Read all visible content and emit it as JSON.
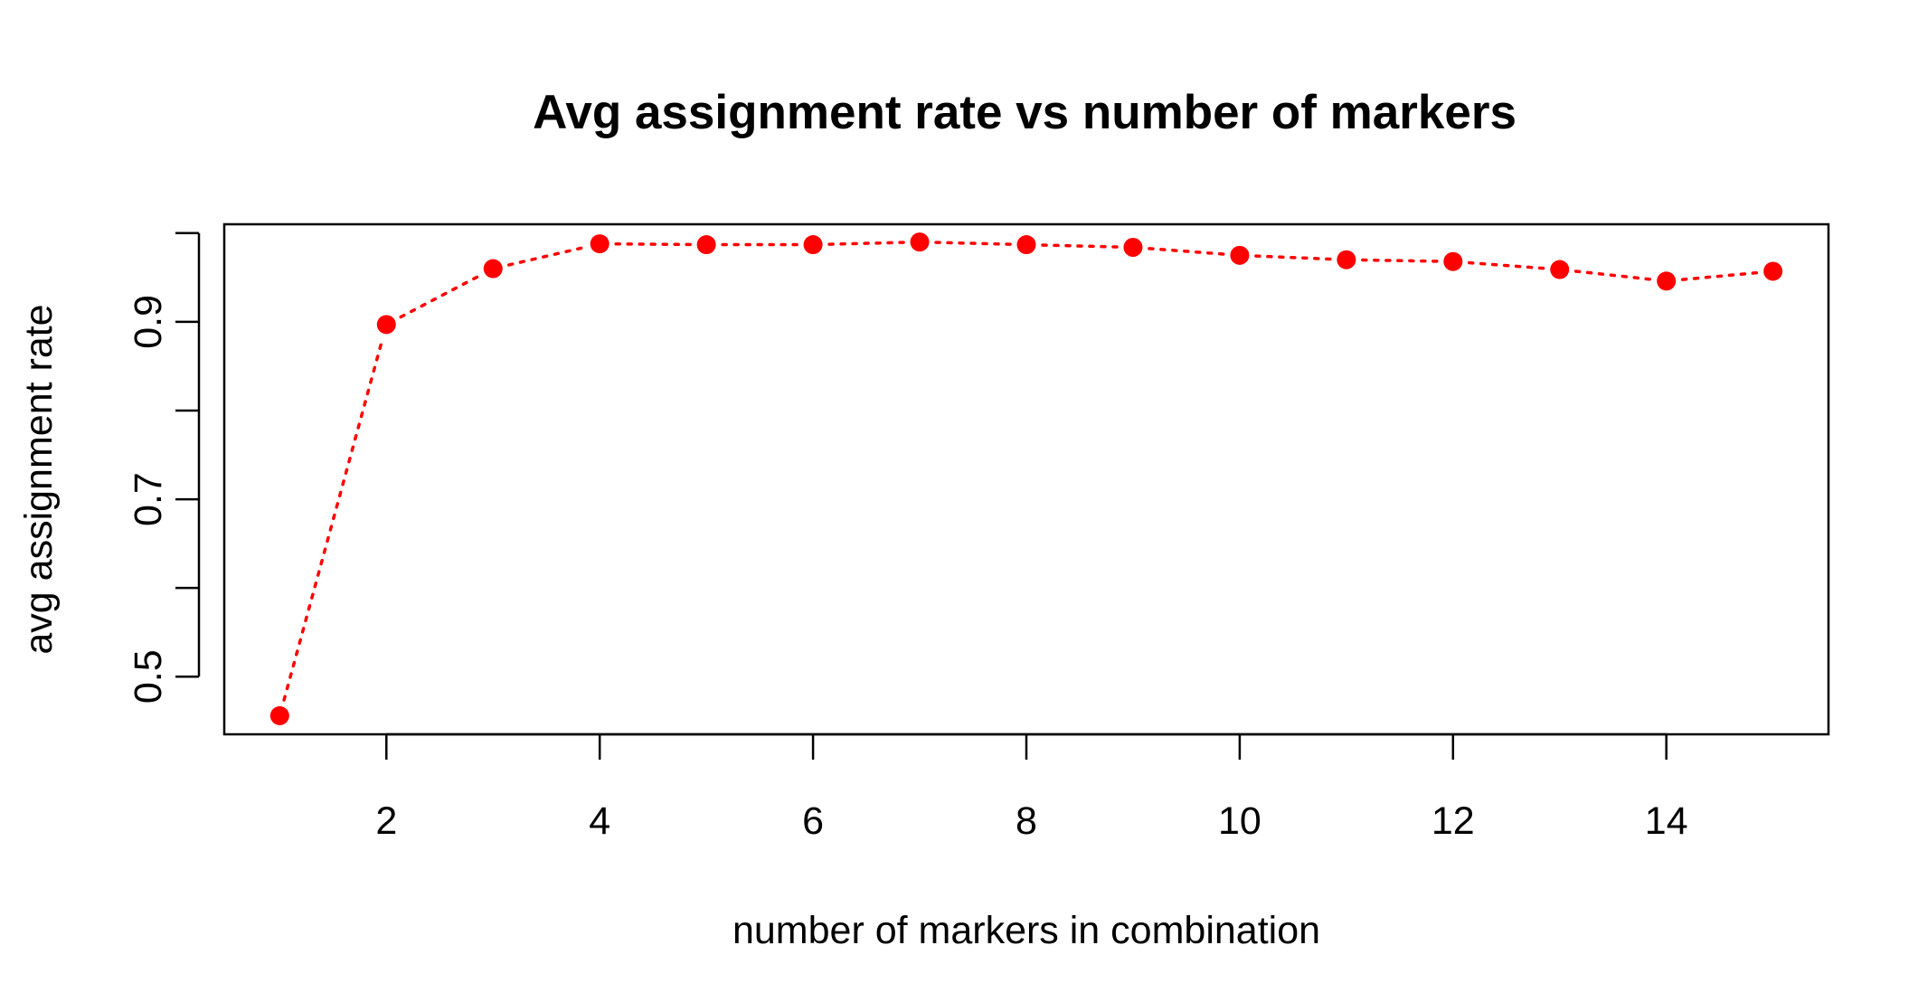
{
  "chart_data": {
    "type": "line",
    "title": "Avg assignment rate vs number of markers",
    "xlabel": "number of markers in combination",
    "ylabel": "avg assignment rate",
    "x": [
      1,
      2,
      3,
      4,
      5,
      6,
      7,
      8,
      9,
      10,
      11,
      12,
      13,
      14,
      15
    ],
    "series": [
      {
        "values": [
          0.456,
          0.897,
          0.96,
          0.988,
          0.987,
          0.987,
          0.99,
          0.987,
          0.984,
          0.975,
          0.97,
          0.968,
          0.959,
          0.946,
          0.957
        ],
        "color": "#ff0000",
        "line_style": "dotted",
        "marker": "filled-circle"
      }
    ],
    "xlim": [
      0.48,
      15.52
    ],
    "ylim": [
      0.435,
      1.01
    ],
    "x_ticks": [
      2,
      4,
      6,
      8,
      10,
      12,
      14
    ],
    "x_tick_labels": [
      "2",
      "4",
      "6",
      "8",
      "10",
      "12",
      "14"
    ],
    "y_ticks": [
      0.5,
      0.6,
      0.7,
      0.8,
      0.9,
      1.0
    ],
    "y_tick_labels": [
      "0.5",
      "",
      "0.7",
      "",
      "0.9",
      ""
    ],
    "grid": false,
    "legend": "none"
  }
}
